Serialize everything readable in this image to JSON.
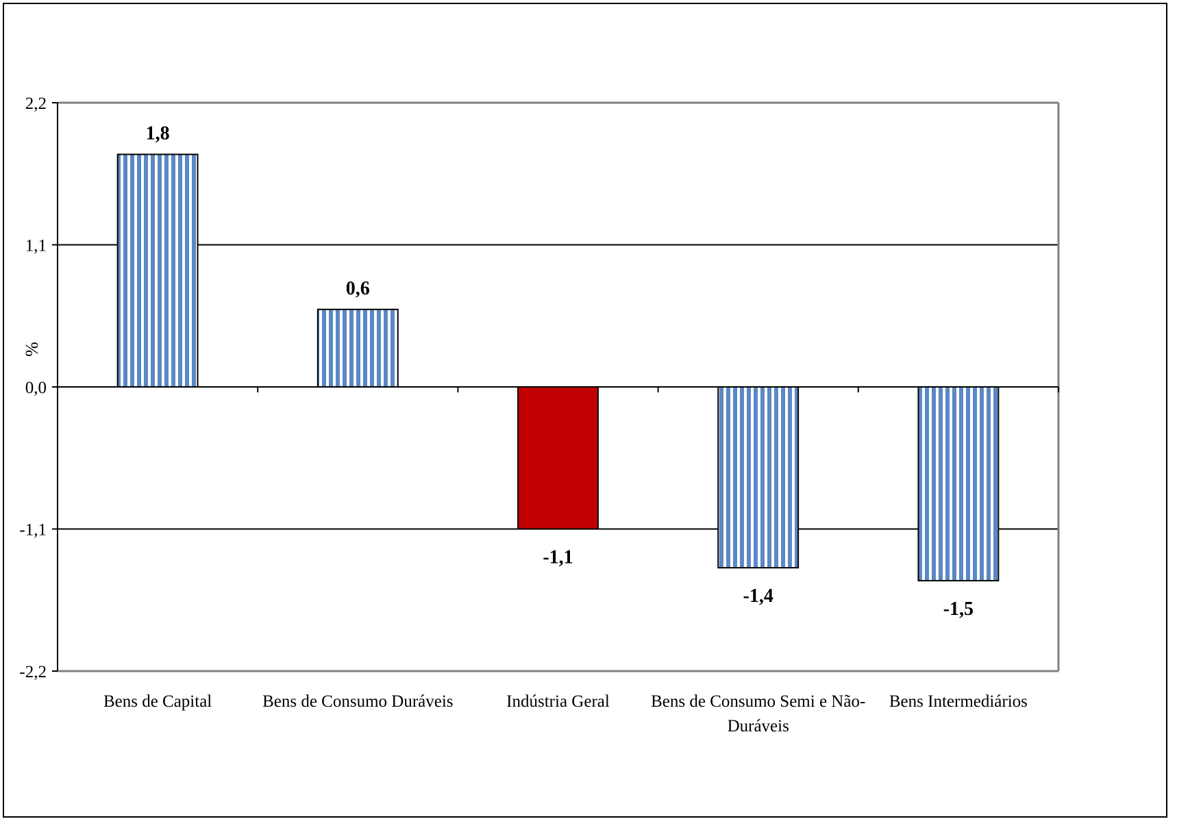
{
  "chart_data": {
    "type": "bar",
    "title": "",
    "xlabel": "",
    "ylabel": "%",
    "ylim": [
      -2.2,
      2.2
    ],
    "yticks": [
      {
        "value": 2.2,
        "label": "2,2"
      },
      {
        "value": 1.1,
        "label": "1,1"
      },
      {
        "value": 0.0,
        "label": "0,0"
      },
      {
        "value": -1.1,
        "label": "-1,1"
      },
      {
        "value": -2.2,
        "label": "-2,2"
      }
    ],
    "grid": true,
    "categories": [
      [
        "Bens de Capital"
      ],
      [
        "Bens de Consumo Duráveis"
      ],
      [
        "Indústria Geral"
      ],
      [
        "Bens de Consumo Semi e Não-",
        "Duráveis"
      ],
      [
        "Bens Intermediários"
      ]
    ],
    "values": [
      1.8,
      0.6,
      -1.1,
      -1.4,
      -1.5
    ],
    "data_labels": [
      "1,8",
      "0,6",
      "-1,1",
      "-1,4",
      "-1,5"
    ],
    "bar_styles": [
      "striped",
      "striped",
      "solid",
      "striped",
      "striped"
    ],
    "colors": {
      "stripe": "#5b88c6",
      "stripe_background": "#ffffff",
      "highlight": "#c00000",
      "gridline": "#000000",
      "plot_border": "#808080"
    }
  }
}
